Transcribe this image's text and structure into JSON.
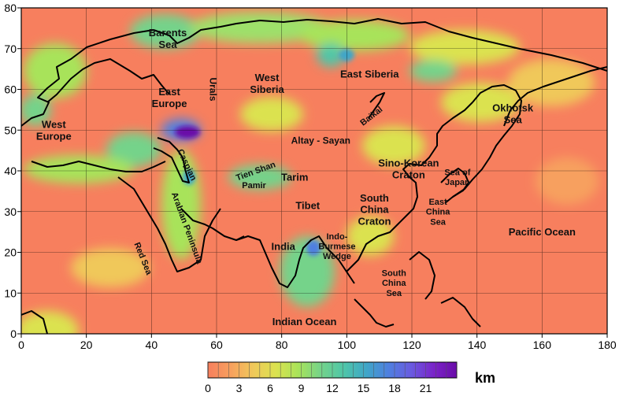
{
  "map": {
    "x_ticks": [
      "0",
      "20",
      "40",
      "60",
      "80",
      "100",
      "120",
      "140",
      "160",
      "180"
    ],
    "y_ticks": [
      "0",
      "10",
      "20",
      "30",
      "40",
      "50",
      "60",
      "70",
      "80"
    ],
    "x_range": [
      0,
      180
    ],
    "y_range": [
      0,
      80
    ],
    "grid": true,
    "colors": {
      "background": "#f77f5e",
      "green": "#74d38a",
      "blue": "#4f7fe0",
      "purple": "#6a0ca8",
      "coast": "#000000"
    }
  },
  "labels": [
    {
      "id": "barents",
      "lines": [
        "Barents",
        "Sea"
      ],
      "lon": 45,
      "lat": 72.5,
      "size": 13
    },
    {
      "id": "urals",
      "lines": [
        "Urals"
      ],
      "lon": 59,
      "lat": 60,
      "size": 12,
      "rot": 90
    },
    {
      "id": "wsib",
      "lines": [
        "West",
        "Siberia"
      ],
      "lon": 75.5,
      "lat": 61.5,
      "size": 13
    },
    {
      "id": "esib",
      "lines": [
        "East Siberia"
      ],
      "lon": 107,
      "lat": 63.8,
      "size": 13
    },
    {
      "id": "eeur",
      "lines": [
        "East",
        "Europe"
      ],
      "lon": 45.5,
      "lat": 58,
      "size": 13
    },
    {
      "id": "weur",
      "lines": [
        "West",
        "Europe"
      ],
      "lon": 10,
      "lat": 50,
      "size": 13
    },
    {
      "id": "baikal",
      "lines": [
        "Baikal"
      ],
      "lon": 107.5,
      "lat": 53.5,
      "size": 11,
      "rot": -38
    },
    {
      "id": "okh",
      "lines": [
        "Okhotsk",
        "Sea"
      ],
      "lon": 151,
      "lat": 54,
      "size": 13
    },
    {
      "id": "altay",
      "lines": [
        "Altay - Sayan"
      ],
      "lon": 92,
      "lat": 47.5,
      "size": 12
    },
    {
      "id": "caspian",
      "lines": [
        "Caspian"
      ],
      "lon": 51,
      "lat": 41.5,
      "size": 11,
      "rot": 65
    },
    {
      "id": "tienshan",
      "lines": [
        "Tien Shan"
      ],
      "lon": 72,
      "lat": 40,
      "size": 11,
      "rot": -20
    },
    {
      "id": "pamir",
      "lines": [
        "Pamir"
      ],
      "lon": 71.5,
      "lat": 36.5,
      "size": 11
    },
    {
      "id": "tarim",
      "lines": [
        "Tarim"
      ],
      "lon": 84,
      "lat": 38.5,
      "size": 13
    },
    {
      "id": "sinokorean",
      "lines": [
        "Sino-Korean",
        "Craton"
      ],
      "lon": 119,
      "lat": 40.5,
      "size": 13
    },
    {
      "id": "seajapan",
      "lines": [
        "Sea of",
        "Japan"
      ],
      "lon": 134,
      "lat": 38.5,
      "size": 11
    },
    {
      "id": "arabian",
      "lines": [
        "Arabian Peninsula"
      ],
      "lon": 51,
      "lat": 26,
      "size": 11,
      "rot": 70
    },
    {
      "id": "tibet",
      "lines": [
        "Tibet"
      ],
      "lon": 88,
      "lat": 31.5,
      "size": 13
    },
    {
      "id": "schina",
      "lines": [
        "South",
        "China",
        "Craton"
      ],
      "lon": 108.5,
      "lat": 30.5,
      "size": 13
    },
    {
      "id": "echina",
      "lines": [
        "East",
        "China",
        "Sea"
      ],
      "lon": 128,
      "lat": 30,
      "size": 11
    },
    {
      "id": "india",
      "lines": [
        "India"
      ],
      "lon": 80.5,
      "lat": 21.5,
      "size": 13
    },
    {
      "id": "indo",
      "lines": [
        "Indo-",
        "Burmese",
        "Wedge"
      ],
      "lon": 97,
      "lat": 21.5,
      "size": 11
    },
    {
      "id": "pacific",
      "lines": [
        "Pacific Ocean"
      ],
      "lon": 160,
      "lat": 25,
      "size": 13
    },
    {
      "id": "redsea",
      "lines": [
        "Red Sea"
      ],
      "lon": 37.5,
      "lat": 18.5,
      "size": 11,
      "rot": 68
    },
    {
      "id": "scsea",
      "lines": [
        "South",
        "China",
        "Sea"
      ],
      "lon": 114.5,
      "lat": 12.5,
      "size": 11
    },
    {
      "id": "indian",
      "lines": [
        "Indian Ocean"
      ],
      "lon": 87,
      "lat": 3,
      "size": 13
    }
  ],
  "colorbar": {
    "ticks": [
      "0",
      "3",
      "6",
      "9",
      "12",
      "15",
      "18",
      "21"
    ],
    "min": 0,
    "max": 24,
    "unit": "km",
    "stops": [
      "#f77f5e",
      "#f7a05e",
      "#f0c85a",
      "#dbe24f",
      "#a8e35a",
      "#74d38a",
      "#4fc6a8",
      "#40a6c8",
      "#4f7fe0",
      "#6a5ae0",
      "#7a22c8",
      "#6a0ca8"
    ]
  }
}
